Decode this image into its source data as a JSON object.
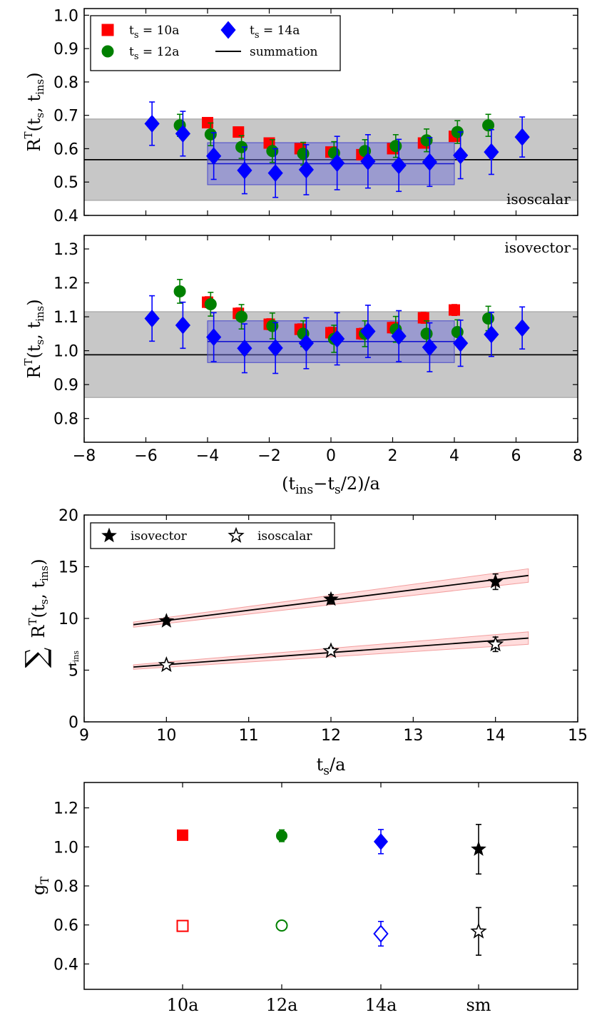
{
  "chart_data": [
    {
      "id": "isoscalar",
      "type": "scatter",
      "annotation": "isoscalar",
      "ylabel_main": "R",
      "ylabel_sup": "T",
      "ylabel_args": "(t_s, t_ins)",
      "xlim": [
        -8,
        8
      ],
      "ylim": [
        0.4,
        1.02
      ],
      "yticks": [
        "0.4",
        "0.5",
        "0.6",
        "0.7",
        "0.8",
        "0.9",
        "1.0"
      ],
      "legend": [
        {
          "label": "t_s = 10a",
          "marker": "square",
          "color": "#ff0000"
        },
        {
          "label": "t_s = 12a",
          "marker": "circle",
          "color": "#008000"
        },
        {
          "label": "t_s = 14a",
          "marker": "diamond",
          "color": "#0000ff"
        },
        {
          "label": "summation",
          "marker": "line",
          "color": "#000000"
        }
      ],
      "summation": {
        "value": 0.567,
        "band": [
          0.445,
          0.689
        ]
      },
      "fit_band": {
        "x": [
          -4,
          4
        ],
        "value": 0.555,
        "band": [
          0.492,
          0.618
        ]
      },
      "series": [
        {
          "name": "t_s = 10a",
          "marker": "square",
          "color": "#ff0000",
          "x": [
            -4,
            -3,
            -2,
            -1,
            0,
            1,
            2,
            3,
            4
          ],
          "y": [
            0.678,
            0.65,
            0.617,
            0.6,
            0.59,
            0.582,
            0.6,
            0.617,
            0.637
          ],
          "err": [
            0.012,
            0.012,
            0.012,
            0.012,
            0.012,
            0.012,
            0.012,
            0.012,
            0.012
          ]
        },
        {
          "name": "t_s = 12a",
          "marker": "circle",
          "color": "#008000",
          "x": [
            -4.9,
            -3.9,
            -2.9,
            -1.9,
            -0.9,
            0.1,
            1.1,
            2.1,
            3.1,
            4.1,
            5.1
          ],
          "y": [
            0.67,
            0.643,
            0.605,
            0.593,
            0.585,
            0.587,
            0.593,
            0.608,
            0.625,
            0.65,
            0.67
          ],
          "err": [
            0.033,
            0.034,
            0.034,
            0.034,
            0.034,
            0.034,
            0.034,
            0.034,
            0.034,
            0.034,
            0.033
          ]
        },
        {
          "name": "t_s = 14a",
          "marker": "diamond",
          "color": "#0000ff",
          "x": [
            -5.8,
            -4.8,
            -3.8,
            -2.8,
            -1.8,
            -0.8,
            0.2,
            1.2,
            2.2,
            3.2,
            4.2,
            5.2,
            6.2
          ],
          "y": [
            0.675,
            0.645,
            0.578,
            0.535,
            0.527,
            0.537,
            0.557,
            0.562,
            0.55,
            0.56,
            0.58,
            0.59,
            0.635
          ],
          "err": [
            0.065,
            0.067,
            0.07,
            0.07,
            0.073,
            0.075,
            0.08,
            0.08,
            0.078,
            0.073,
            0.07,
            0.067,
            0.06
          ]
        }
      ]
    },
    {
      "id": "isovector",
      "type": "scatter",
      "annotation": "isovector",
      "ylabel_main": "R",
      "ylabel_sup": "T",
      "ylabel_args": "(t_s, t_ins)",
      "xlabel": "(t_ins − t_s/2)/a",
      "xlim": [
        -8,
        8
      ],
      "xticks": [
        "−8",
        "−6",
        "−4",
        "−2",
        "0",
        "2",
        "4",
        "6",
        "8"
      ],
      "ylim": [
        0.73,
        1.34
      ],
      "yticks": [
        "0.8",
        "0.9",
        "1.0",
        "1.1",
        "1.2",
        "1.3"
      ],
      "summation": {
        "value": 0.988,
        "band": [
          0.862,
          1.115
        ]
      },
      "fit_band": {
        "x": [
          -4,
          4
        ],
        "value": 1.027,
        "band": [
          0.965,
          1.088
        ]
      },
      "series": [
        {
          "name": "t_s = 10a",
          "marker": "square",
          "color": "#ff0000",
          "x": [
            -4,
            -3,
            -2,
            -1,
            0,
            1,
            2,
            3,
            4
          ],
          "y": [
            1.143,
            1.11,
            1.078,
            1.063,
            1.053,
            1.05,
            1.068,
            1.097,
            1.12
          ],
          "err": [
            0.016,
            0.016,
            0.016,
            0.016,
            0.016,
            0.016,
            0.016,
            0.016,
            0.016
          ]
        },
        {
          "name": "t_s = 12a",
          "marker": "circle",
          "color": "#008000",
          "x": [
            -4.9,
            -3.9,
            -2.9,
            -1.9,
            -0.9,
            0.1,
            1.1,
            2.1,
            3.1,
            4.1,
            5.1
          ],
          "y": [
            1.175,
            1.137,
            1.1,
            1.073,
            1.05,
            1.035,
            1.05,
            1.063,
            1.05,
            1.055,
            1.095
          ],
          "err": [
            0.035,
            0.035,
            0.036,
            0.038,
            0.038,
            0.04,
            0.038,
            0.038,
            0.038,
            0.036,
            0.036
          ]
        },
        {
          "name": "t_s = 14a",
          "marker": "diamond",
          "color": "#0000ff",
          "x": [
            -5.8,
            -4.8,
            -3.8,
            -2.8,
            -1.8,
            -0.8,
            0.2,
            1.2,
            2.2,
            3.2,
            4.2,
            5.2,
            6.2
          ],
          "y": [
            1.095,
            1.075,
            1.04,
            1.007,
            1.008,
            1.022,
            1.035,
            1.057,
            1.043,
            1.01,
            1.022,
            1.048,
            1.067
          ],
          "err": [
            0.067,
            0.068,
            0.072,
            0.072,
            0.075,
            0.075,
            0.077,
            0.077,
            0.075,
            0.072,
            0.068,
            0.065,
            0.062
          ]
        }
      ]
    },
    {
      "id": "summation-fit",
      "type": "line",
      "ylabel_main": "R",
      "ylabel_sup": "T",
      "ylabel_args": "(t_s, t_ins)",
      "ylabel_sub": "t_ins",
      "xlabel": "t_s/a",
      "xlim": [
        9,
        15
      ],
      "xticks": [
        "9",
        "10",
        "11",
        "12",
        "13",
        "14",
        "15"
      ],
      "ylim": [
        0,
        20
      ],
      "yticks": [
        "0",
        "5",
        "10",
        "15",
        "20"
      ],
      "legend": [
        {
          "label": "isovector",
          "marker": "star-filled",
          "color": "#000000"
        },
        {
          "label": "isoscalar",
          "marker": "star-open",
          "color": "#000000"
        }
      ],
      "series": [
        {
          "name": "isovector",
          "marker": "star-filled",
          "x": [
            10,
            12,
            14
          ],
          "y": [
            9.75,
            11.85,
            13.55
          ],
          "err": [
            0.3,
            0.45,
            0.75
          ],
          "fit": {
            "x": [
              9.6,
              14.4
            ],
            "y": [
              9.4,
              14.15
            ],
            "band_halfwidth": [
              0.25,
              0.65
            ]
          }
        },
        {
          "name": "isoscalar",
          "marker": "star-open",
          "x": [
            10,
            12,
            14
          ],
          "y": [
            5.5,
            6.85,
            7.5
          ],
          "err": [
            0.2,
            0.35,
            0.7
          ],
          "fit": {
            "x": [
              9.6,
              14.4
            ],
            "y": [
              5.3,
              8.1
            ],
            "band_halfwidth": [
              0.22,
              0.6
            ]
          }
        }
      ]
    },
    {
      "id": "g-T",
      "type": "scatter",
      "ylabel_main": "g",
      "ylabel_sub": "T",
      "categories": [
        "10a",
        "12a",
        "14a",
        "sm"
      ],
      "ylim": [
        0.27,
        1.33
      ],
      "yticks": [
        "0.4",
        "0.6",
        "0.8",
        "1.0",
        "1.2"
      ],
      "series": [
        {
          "name": "isovector",
          "style": "filled",
          "markers": [
            "square",
            "circle",
            "diamond",
            "star"
          ],
          "colors": [
            "#ff0000",
            "#008000",
            "#0000ff",
            "#000000"
          ],
          "values": [
            1.06,
            1.057,
            1.027,
            0.988
          ],
          "err": [
            0.016,
            0.03,
            0.062,
            0.127
          ]
        },
        {
          "name": "isoscalar",
          "style": "open",
          "markers": [
            "square",
            "circle",
            "diamond",
            "star"
          ],
          "colors": [
            "#ff0000",
            "#008000",
            "#0000ff",
            "#000000"
          ],
          "values": [
            0.595,
            0.597,
            0.555,
            0.567
          ],
          "err": [
            0.01,
            0.025,
            0.063,
            0.122
          ]
        }
      ]
    }
  ]
}
